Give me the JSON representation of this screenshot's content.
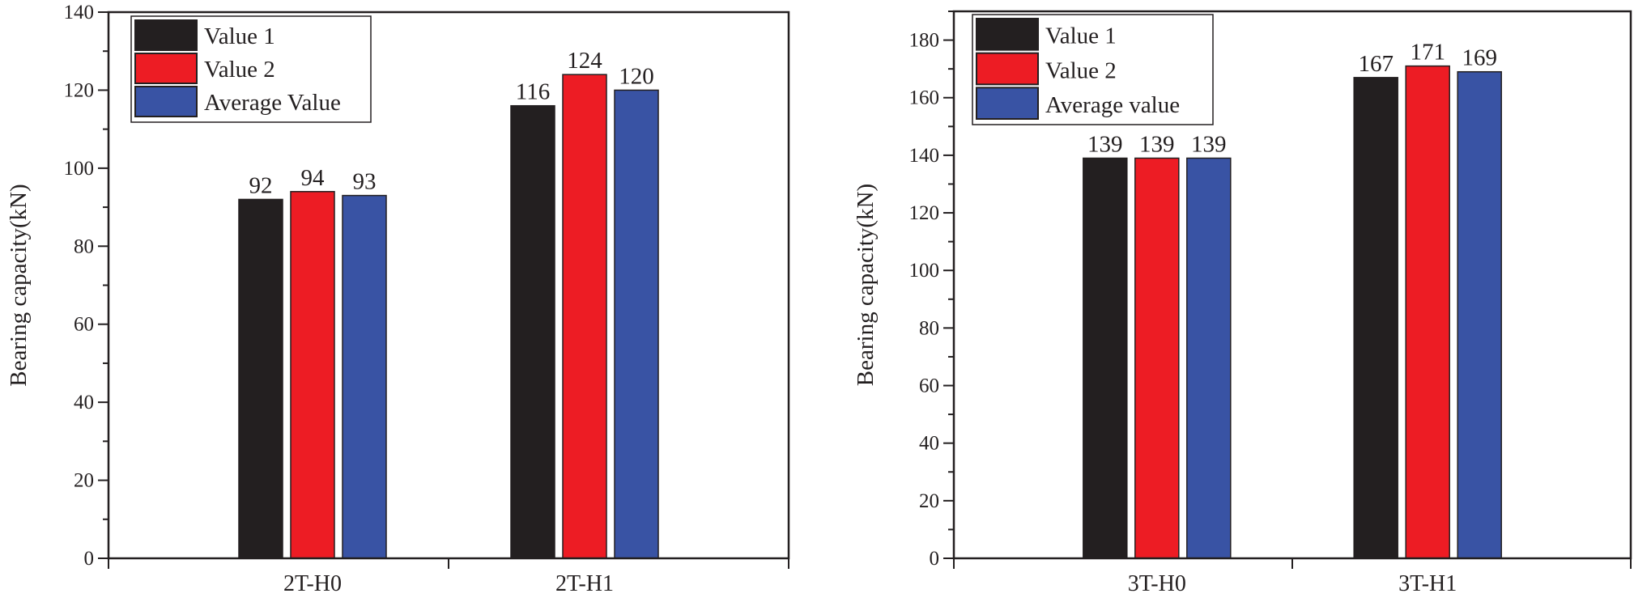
{
  "colors": {
    "Value 1": "#231f20",
    "Value 2": "#ed1c24",
    "Average": "#3953a4",
    "axis": "#231f20"
  },
  "chart_data": [
    {
      "type": "bar",
      "title": "",
      "xlabel": "",
      "ylabel": "Bearing capacity(kN)",
      "categories": [
        "2T-H0",
        "2T-H1"
      ],
      "ylim": [
        0,
        140
      ],
      "yticks": [
        0,
        20,
        40,
        60,
        80,
        100,
        120,
        140
      ],
      "grid": false,
      "legend_position": "top-left",
      "series": [
        {
          "name": "Value 1",
          "values": [
            92,
            116
          ],
          "color": "#231f20"
        },
        {
          "name": "Value 2",
          "values": [
            94,
            124
          ],
          "color": "#ed1c24"
        },
        {
          "name": "Average Value",
          "values": [
            93,
            120
          ],
          "color": "#3953a4"
        }
      ]
    },
    {
      "type": "bar",
      "title": "",
      "xlabel": "",
      "ylabel": "Bearing capacity(kN)",
      "categories": [
        "3T-H0",
        "3T-H1"
      ],
      "ylim": [
        0,
        190
      ],
      "yticks": [
        0,
        20,
        40,
        60,
        80,
        100,
        120,
        140,
        160,
        180
      ],
      "grid": false,
      "legend_position": "top-left",
      "series": [
        {
          "name": "Value 1",
          "values": [
            139,
            167
          ],
          "color": "#231f20"
        },
        {
          "name": "Value 2",
          "values": [
            139,
            171
          ],
          "color": "#ed1c24"
        },
        {
          "name": "Average value",
          "values": [
            139,
            169
          ],
          "color": "#3953a4"
        }
      ]
    }
  ]
}
